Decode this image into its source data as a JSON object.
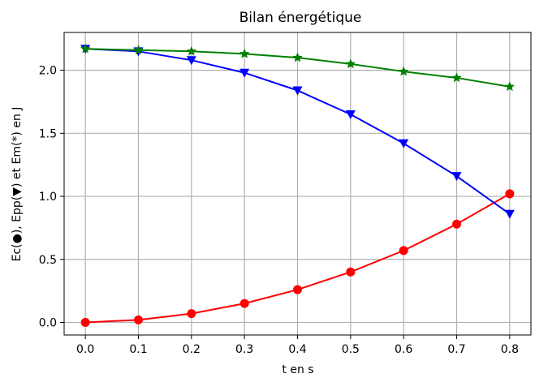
{
  "chart_data": {
    "type": "line",
    "title": "Bilan énergétique",
    "xlabel": "t en s",
    "ylabel": "Ec(●), Epp(▼) et Em(*) en J",
    "x": [
      0.0,
      0.1,
      0.2,
      0.3,
      0.4,
      0.5,
      0.6,
      0.7,
      0.8
    ],
    "xticks": [
      "0.0",
      "0.1",
      "0.2",
      "0.3",
      "0.4",
      "0.5",
      "0.6",
      "0.7",
      "0.8"
    ],
    "yticks": [
      "0.0",
      "0.5",
      "1.0",
      "1.5",
      "2.0"
    ],
    "xlim": [
      -0.04,
      0.84
    ],
    "ylim": [
      -0.1,
      2.3
    ],
    "grid": true,
    "series": [
      {
        "marker": "circle",
        "color": "#ff0000",
        "values": [
          0.0,
          0.02,
          0.07,
          0.15,
          0.26,
          0.4,
          0.57,
          0.78,
          1.02
        ]
      },
      {
        "marker": "triangle-down",
        "color": "#0000ff",
        "values": [
          2.17,
          2.15,
          2.08,
          1.98,
          1.84,
          1.65,
          1.42,
          1.16,
          0.86
        ]
      },
      {
        "marker": "star",
        "color": "#008000",
        "values": [
          2.17,
          2.16,
          2.15,
          2.13,
          2.1,
          2.05,
          1.99,
          1.94,
          1.87
        ]
      }
    ]
  }
}
